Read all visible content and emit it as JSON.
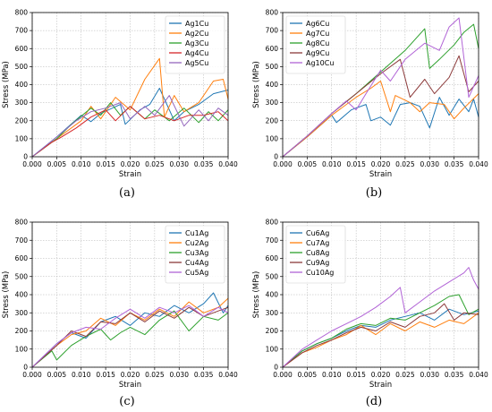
{
  "chart_data": [
    {
      "type": "line",
      "panel_label": "(a)",
      "xlabel": "Strain",
      "ylabel": "Stress (MPa)",
      "xlim": [
        0,
        0.04
      ],
      "ylim": [
        0,
        800
      ],
      "xticks": [
        "0.000",
        "0.005",
        "0.010",
        "0.015",
        "0.020",
        "0.025",
        "0.030",
        "0.035",
        "0.040"
      ],
      "yticks": [
        "0",
        "100",
        "200",
        "300",
        "400",
        "500",
        "600",
        "700",
        "800"
      ],
      "grid": true,
      "legend": "top-right",
      "series": [
        {
          "name": "Ag1Cu",
          "color": "#1f77b4",
          "x": [
            0,
            0.005,
            0.01,
            0.012,
            0.014,
            0.018,
            0.019,
            0.022,
            0.024,
            0.026,
            0.029,
            0.031,
            0.034,
            0.037,
            0.04
          ],
          "y": [
            0,
            110,
            230,
            195,
            240,
            290,
            180,
            260,
            290,
            380,
            200,
            250,
            290,
            350,
            370
          ]
        },
        {
          "name": "Ag2Cu",
          "color": "#ff7f0e",
          "x": [
            0,
            0.005,
            0.01,
            0.012,
            0.014,
            0.017,
            0.02,
            0.023,
            0.026,
            0.027,
            0.029,
            0.031,
            0.034,
            0.037,
            0.039,
            0.04
          ],
          "y": [
            0,
            100,
            200,
            280,
            210,
            330,
            260,
            430,
            545,
            220,
            340,
            250,
            300,
            420,
            430,
            320
          ]
        },
        {
          "name": "Ag3Cu",
          "color": "#2ca02c",
          "x": [
            0,
            0.005,
            0.008,
            0.012,
            0.014,
            0.016,
            0.018,
            0.02,
            0.023,
            0.025,
            0.028,
            0.031,
            0.034,
            0.036,
            0.038,
            0.04
          ],
          "y": [
            0,
            100,
            180,
            270,
            230,
            300,
            230,
            280,
            210,
            260,
            200,
            270,
            190,
            250,
            200,
            260
          ]
        },
        {
          "name": "Ag4Cu",
          "color": "#d62728",
          "x": [
            0,
            0.004,
            0.006,
            0.009,
            0.012,
            0.015,
            0.017,
            0.02,
            0.023,
            0.026,
            0.029,
            0.032,
            0.035,
            0.038,
            0.04
          ],
          "y": [
            0,
            80,
            110,
            160,
            220,
            260,
            200,
            280,
            210,
            230,
            200,
            230,
            230,
            250,
            200
          ]
        },
        {
          "name": "Ag5Cu",
          "color": "#9467bd",
          "x": [
            0,
            0.005,
            0.009,
            0.012,
            0.015,
            0.018,
            0.02,
            0.023,
            0.025,
            0.028,
            0.031,
            0.034,
            0.036,
            0.038,
            0.04
          ],
          "y": [
            0,
            110,
            200,
            250,
            270,
            300,
            210,
            280,
            230,
            340,
            170,
            260,
            200,
            270,
            230
          ]
        }
      ]
    },
    {
      "type": "line",
      "panel_label": "(b)",
      "xlabel": "Strain",
      "ylabel": "Stress (MPa)",
      "xlim": [
        0,
        0.04
      ],
      "ylim": [
        0,
        800
      ],
      "xticks": [
        "0.000",
        "0.005",
        "0.010",
        "0.015",
        "0.020",
        "0.025",
        "0.030",
        "0.035",
        "0.040"
      ],
      "yticks": [
        "0",
        "100",
        "200",
        "300",
        "400",
        "500",
        "600",
        "700",
        "800"
      ],
      "grid": true,
      "legend": "top-left",
      "series": [
        {
          "name": "Ag6Cu",
          "color": "#1f77b4",
          "x": [
            0,
            0.005,
            0.01,
            0.011,
            0.014,
            0.017,
            0.018,
            0.02,
            0.022,
            0.024,
            0.026,
            0.028,
            0.03,
            0.032,
            0.034,
            0.036,
            0.038,
            0.039,
            0.04
          ],
          "y": [
            0,
            110,
            230,
            190,
            260,
            290,
            200,
            220,
            175,
            290,
            300,
            280,
            160,
            330,
            230,
            320,
            250,
            320,
            220
          ]
        },
        {
          "name": "Ag7Cu",
          "color": "#ff7f0e",
          "x": [
            0,
            0.005,
            0.01,
            0.015,
            0.018,
            0.02,
            0.022,
            0.023,
            0.026,
            0.028,
            0.03,
            0.033,
            0.035,
            0.037,
            0.04
          ],
          "y": [
            0,
            110,
            230,
            330,
            380,
            420,
            250,
            340,
            300,
            250,
            300,
            290,
            210,
            270,
            350
          ]
        },
        {
          "name": "Ag8Cu",
          "color": "#2ca02c",
          "x": [
            0,
            0.005,
            0.01,
            0.015,
            0.02,
            0.025,
            0.029,
            0.03,
            0.032,
            0.035,
            0.037,
            0.039,
            0.04
          ],
          "y": [
            0,
            115,
            240,
            350,
            470,
            590,
            710,
            490,
            540,
            620,
            690,
            735,
            600
          ]
        },
        {
          "name": "Ag9Cu",
          "color": "#8c3a3a",
          "x": [
            0,
            0.005,
            0.01,
            0.015,
            0.02,
            0.024,
            0.026,
            0.029,
            0.031,
            0.034,
            0.036,
            0.038,
            0.04
          ],
          "y": [
            0,
            115,
            240,
            350,
            460,
            540,
            330,
            430,
            350,
            440,
            560,
            360,
            420
          ]
        },
        {
          "name": "Ag10Cu",
          "color": "#b163d6",
          "x": [
            0,
            0.005,
            0.01,
            0.013,
            0.015,
            0.017,
            0.02,
            0.022,
            0.025,
            0.029,
            0.032,
            0.034,
            0.036,
            0.038,
            0.04
          ],
          "y": [
            0,
            115,
            240,
            310,
            260,
            350,
            480,
            420,
            540,
            630,
            590,
            720,
            770,
            330,
            450
          ]
        }
      ]
    },
    {
      "type": "line",
      "panel_label": "(c)",
      "xlabel": "Strain",
      "ylabel": "Stress (MPa)",
      "xlim": [
        0,
        0.04
      ],
      "ylim": [
        0,
        800
      ],
      "xticks": [
        "0.000",
        "0.005",
        "0.010",
        "0.015",
        "0.020",
        "0.025",
        "0.030",
        "0.035",
        "0.040"
      ],
      "yticks": [
        "0",
        "100",
        "200",
        "300",
        "400",
        "500",
        "600",
        "700",
        "800"
      ],
      "grid": true,
      "legend": "top-right",
      "series": [
        {
          "name": "Cu1Ag",
          "color": "#1f77b4",
          "x": [
            0,
            0.005,
            0.008,
            0.011,
            0.014,
            0.017,
            0.02,
            0.023,
            0.026,
            0.029,
            0.032,
            0.035,
            0.037,
            0.039,
            0.04
          ],
          "y": [
            0,
            130,
            190,
            160,
            250,
            280,
            230,
            300,
            280,
            340,
            300,
            350,
            410,
            300,
            340
          ]
        },
        {
          "name": "Cu2Ag",
          "color": "#ff7f0e",
          "x": [
            0,
            0.005,
            0.008,
            0.011,
            0.014,
            0.017,
            0.02,
            0.023,
            0.026,
            0.029,
            0.032,
            0.035,
            0.038,
            0.04
          ],
          "y": [
            0,
            120,
            180,
            200,
            270,
            230,
            300,
            260,
            320,
            280,
            360,
            300,
            330,
            380
          ]
        },
        {
          "name": "Cu3Ag",
          "color": "#2ca02c",
          "x": [
            0,
            0.004,
            0.005,
            0.008,
            0.011,
            0.014,
            0.016,
            0.018,
            0.02,
            0.023,
            0.026,
            0.029,
            0.032,
            0.035,
            0.038,
            0.04
          ],
          "y": [
            0,
            90,
            40,
            120,
            170,
            210,
            150,
            190,
            220,
            180,
            260,
            310,
            200,
            280,
            260,
            300
          ]
        },
        {
          "name": "Cu4Ag",
          "color": "#8c3a3a",
          "x": [
            0,
            0.005,
            0.008,
            0.011,
            0.014,
            0.017,
            0.02,
            0.023,
            0.026,
            0.029,
            0.032,
            0.035,
            0.038,
            0.04
          ],
          "y": [
            0,
            120,
            200,
            170,
            250,
            240,
            300,
            250,
            310,
            270,
            330,
            280,
            310,
            330
          ]
        },
        {
          "name": "Cu5Ag",
          "color": "#b163d6",
          "x": [
            0,
            0.005,
            0.008,
            0.011,
            0.014,
            0.017,
            0.02,
            0.023,
            0.026,
            0.029,
            0.032,
            0.035,
            0.038,
            0.04
          ],
          "y": [
            0,
            130,
            190,
            220,
            210,
            270,
            320,
            270,
            330,
            300,
            340,
            280,
            330,
            300
          ]
        }
      ]
    },
    {
      "type": "line",
      "panel_label": "(d)",
      "xlabel": "Strain",
      "ylabel": "Stress (MPa)",
      "xlim": [
        0,
        0.04
      ],
      "ylim": [
        0,
        800
      ],
      "xticks": [
        "0.000",
        "0.005",
        "0.010",
        "0.015",
        "0.020",
        "0.025",
        "0.030",
        "0.035",
        "0.040"
      ],
      "yticks": [
        "0",
        "100",
        "200",
        "300",
        "400",
        "500",
        "600",
        "700",
        "800"
      ],
      "grid": true,
      "legend": "top-left",
      "series": [
        {
          "name": "Cu6Ag",
          "color": "#1f77b4",
          "x": [
            0,
            0.004,
            0.007,
            0.01,
            0.013,
            0.016,
            0.019,
            0.022,
            0.025,
            0.028,
            0.031,
            0.034,
            0.037,
            0.04
          ],
          "y": [
            0,
            90,
            130,
            160,
            200,
            230,
            220,
            260,
            280,
            300,
            260,
            320,
            290,
            310
          ]
        },
        {
          "name": "Cu7Ag",
          "color": "#ff7f0e",
          "x": [
            0,
            0.004,
            0.007,
            0.01,
            0.013,
            0.016,
            0.019,
            0.022,
            0.025,
            0.028,
            0.031,
            0.034,
            0.037,
            0.04
          ],
          "y": [
            0,
            80,
            110,
            150,
            180,
            230,
            180,
            240,
            200,
            250,
            220,
            260,
            240,
            300
          ]
        },
        {
          "name": "Cu8Ag",
          "color": "#2ca02c",
          "x": [
            0,
            0.004,
            0.007,
            0.01,
            0.013,
            0.016,
            0.019,
            0.022,
            0.025,
            0.028,
            0.031,
            0.034,
            0.036,
            0.038,
            0.04
          ],
          "y": [
            0,
            90,
            130,
            160,
            210,
            240,
            230,
            270,
            260,
            300,
            340,
            390,
            400,
            290,
            320
          ]
        },
        {
          "name": "Cu9Ag",
          "color": "#8c3a3a",
          "x": [
            0,
            0.004,
            0.007,
            0.01,
            0.013,
            0.016,
            0.019,
            0.022,
            0.025,
            0.028,
            0.031,
            0.033,
            0.035,
            0.037,
            0.04
          ],
          "y": [
            0,
            80,
            120,
            150,
            190,
            220,
            200,
            250,
            220,
            280,
            300,
            350,
            260,
            300,
            290
          ]
        },
        {
          "name": "Cu10Ag",
          "color": "#b163d6",
          "x": [
            0,
            0.004,
            0.007,
            0.01,
            0.013,
            0.016,
            0.019,
            0.022,
            0.024,
            0.025,
            0.028,
            0.031,
            0.034,
            0.037,
            0.038,
            0.039,
            0.04
          ],
          "y": [
            0,
            100,
            150,
            200,
            240,
            280,
            330,
            390,
            440,
            300,
            360,
            420,
            470,
            520,
            550,
            480,
            430
          ]
        }
      ]
    }
  ]
}
